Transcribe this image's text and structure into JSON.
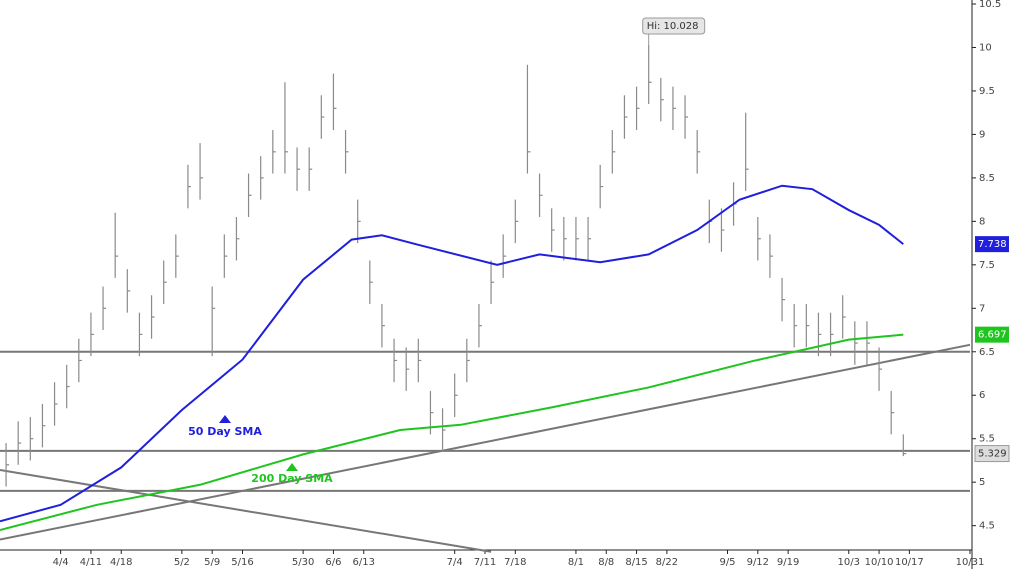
{
  "chart_data": {
    "type": "ohlc",
    "xlim": [
      -10,
      150
    ],
    "ylim": [
      4.22,
      10.5
    ],
    "xticks": [
      {
        "value": 0,
        "label": "4/4"
      },
      {
        "value": 5,
        "label": "4/11"
      },
      {
        "value": 10,
        "label": "4/18"
      },
      {
        "value": 20,
        "label": "5/2"
      },
      {
        "value": 25,
        "label": "5/9"
      },
      {
        "value": 30,
        "label": "5/16"
      },
      {
        "value": 40,
        "label": "5/30"
      },
      {
        "value": 45,
        "label": "6/6"
      },
      {
        "value": 50,
        "label": "6/13"
      },
      {
        "value": 65,
        "label": "7/4"
      },
      {
        "value": 70,
        "label": "7/11"
      },
      {
        "value": 75,
        "label": "7/18"
      },
      {
        "value": 85,
        "label": "8/1"
      },
      {
        "value": 90,
        "label": "8/8"
      },
      {
        "value": 95,
        "label": "8/15"
      },
      {
        "value": 100,
        "label": "8/22"
      },
      {
        "value": 110,
        "label": "9/5"
      },
      {
        "value": 115,
        "label": "9/12"
      },
      {
        "value": 120,
        "label": "9/19"
      },
      {
        "value": 130,
        "label": "10/3"
      },
      {
        "value": 135,
        "label": "10/10"
      },
      {
        "value": 140,
        "label": "10/17"
      },
      {
        "value": 150,
        "label": "10/31"
      }
    ],
    "yticks": [
      4.5,
      5,
      5.5,
      6,
      6.5,
      7,
      7.5,
      8,
      8.5,
      9,
      9.5,
      10,
      10.5
    ],
    "bars": {
      "color": "#8a8a8a",
      "x": [
        -9,
        -7,
        -5,
        -3,
        -1,
        1,
        3,
        5,
        7,
        9,
        11,
        13,
        15,
        17,
        19,
        21,
        23,
        25,
        27,
        29,
        31,
        33,
        35,
        37,
        39,
        41,
        43,
        45,
        47,
        49,
        51,
        53,
        55,
        57,
        59,
        61,
        63,
        65,
        67,
        69,
        71,
        73,
        75,
        77,
        79,
        81,
        83,
        85,
        87,
        89,
        91,
        93,
        95,
        97,
        99,
        101,
        103,
        105,
        107,
        109,
        111,
        113,
        115,
        117,
        119,
        121,
        123,
        125,
        127,
        129,
        131,
        133,
        135,
        137,
        139
      ],
      "high": [
        5.45,
        5.7,
        5.75,
        5.9,
        6.15,
        6.35,
        6.65,
        6.95,
        7.25,
        8.1,
        7.45,
        6.95,
        7.15,
        7.55,
        7.85,
        8.65,
        8.9,
        7.25,
        7.85,
        8.05,
        8.55,
        8.75,
        9.05,
        9.6,
        8.85,
        8.85,
        9.45,
        9.7,
        9.05,
        8.25,
        7.55,
        7.05,
        6.65,
        6.55,
        6.65,
        6.05,
        5.85,
        6.25,
        6.65,
        7.05,
        7.55,
        7.85,
        8.25,
        9.8,
        8.55,
        8.15,
        8.05,
        8.05,
        8.05,
        8.65,
        9.05,
        9.45,
        9.55,
        10.028,
        9.65,
        9.55,
        9.45,
        9.05,
        8.25,
        8.15,
        8.45,
        9.25,
        8.05,
        7.85,
        7.35,
        7.05,
        7.05,
        6.95,
        6.95,
        7.15,
        6.85,
        6.85,
        6.55,
        6.05,
        5.55
      ],
      "low": [
        4.95,
        5.2,
        5.25,
        5.4,
        5.65,
        5.85,
        6.15,
        6.45,
        6.75,
        7.35,
        6.95,
        6.45,
        6.65,
        7.05,
        7.35,
        8.15,
        8.25,
        6.45,
        7.35,
        7.55,
        8.05,
        8.25,
        8.55,
        8.55,
        8.35,
        8.35,
        8.95,
        9.05,
        8.55,
        7.75,
        7.05,
        6.55,
        6.15,
        6.05,
        6.15,
        5.55,
        5.35,
        5.75,
        6.15,
        6.55,
        7.05,
        7.35,
        7.75,
        8.55,
        8.05,
        7.65,
        7.55,
        7.55,
        7.55,
        8.15,
        8.55,
        8.95,
        9.05,
        9.35,
        9.15,
        9.05,
        8.95,
        8.55,
        7.75,
        7.65,
        7.95,
        8.35,
        7.55,
        7.35,
        6.85,
        6.55,
        6.55,
        6.45,
        6.45,
        6.65,
        6.35,
        6.35,
        6.05,
        5.55,
        5.3
      ],
      "close": [
        5.2,
        5.45,
        5.5,
        5.65,
        5.9,
        6.1,
        6.4,
        6.7,
        7.0,
        7.6,
        7.2,
        6.7,
        6.9,
        7.3,
        7.6,
        8.4,
        8.5,
        7.0,
        7.6,
        7.8,
        8.3,
        8.5,
        8.8,
        8.8,
        8.6,
        8.6,
        9.2,
        9.3,
        8.8,
        8.0,
        7.3,
        6.8,
        6.4,
        6.3,
        6.4,
        5.8,
        5.6,
        6.0,
        6.4,
        6.8,
        7.3,
        7.6,
        8.0,
        8.8,
        8.3,
        7.9,
        7.8,
        7.8,
        7.8,
        8.4,
        8.8,
        9.2,
        9.3,
        9.6,
        9.4,
        9.3,
        9.2,
        8.8,
        8.0,
        7.9,
        8.2,
        8.6,
        7.8,
        7.6,
        7.1,
        6.8,
        6.8,
        6.7,
        6.7,
        6.9,
        6.6,
        6.6,
        6.3,
        5.8,
        5.329
      ]
    },
    "series": [
      {
        "name": "50 Day SMA",
        "color": "#1f1fdc",
        "x": [
          -10,
          0,
          10,
          20,
          30,
          40,
          48,
          53,
          59,
          72,
          79,
          89,
          97,
          105,
          112,
          119,
          124,
          130,
          135,
          139
        ],
        "values": [
          4.55,
          4.74,
          5.17,
          5.83,
          6.41,
          7.33,
          7.79,
          7.84,
          7.73,
          7.5,
          7.62,
          7.53,
          7.62,
          7.9,
          8.25,
          8.41,
          8.37,
          8.13,
          7.96,
          7.738
        ]
      },
      {
        "name": "200 Day SMA",
        "color": "#1fc41f",
        "x": [
          -10,
          6,
          23,
          40,
          56,
          66,
          81,
          97,
          114,
          130,
          139
        ],
        "values": [
          4.45,
          4.74,
          4.97,
          5.32,
          5.6,
          5.66,
          5.86,
          6.09,
          6.39,
          6.64,
          6.697
        ]
      }
    ],
    "trendlines": [
      {
        "x": [
          -10,
          150
        ],
        "values": [
          4.34,
          6.58
        ]
      },
      {
        "x": [
          -10,
          71
        ],
        "values": [
          5.14,
          4.2
        ]
      }
    ],
    "levels": [
      6.5,
      5.36,
      4.9
    ],
    "annotation": "Hi: 10.028"
  }
}
